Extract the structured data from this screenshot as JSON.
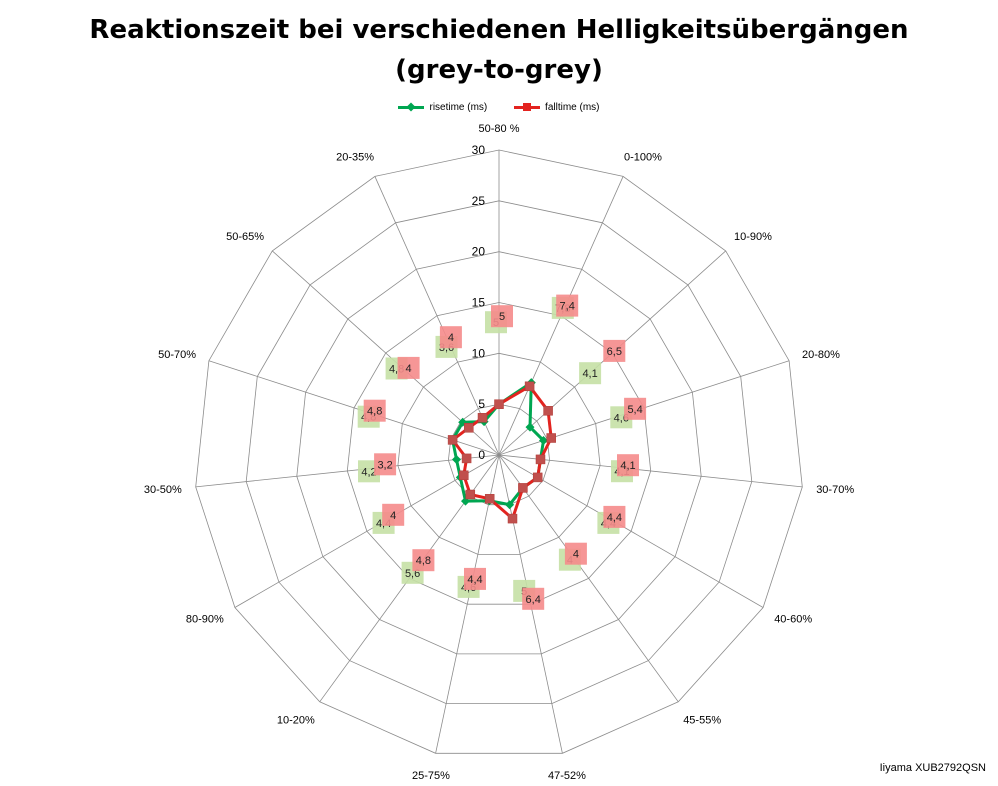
{
  "chart_data": {
    "type": "radar",
    "title": "Reaktionszeit bei verschiedenen Helligkeitsübergängen (grey-to-grey)",
    "title_lines": [
      "Reaktionszeit bei verschiedenen Helligkeitsübergängen",
      "(grey-to-grey)"
    ],
    "categories": [
      "50-80 %",
      "0-100%",
      "10-90%",
      "20-80%",
      "30-70%",
      "40-60%",
      "45-55%",
      "47-52%",
      "25-75%",
      "10-20%",
      "80-90%",
      "30-50%",
      "50-70%",
      "50-65%",
      "20-35%"
    ],
    "r_ticks": [
      "0",
      "5",
      "10",
      "15",
      "20",
      "25",
      "30"
    ],
    "rlim": [
      0,
      30
    ],
    "series": [
      {
        "name": "risetime (ms)",
        "color": "#00a651",
        "marker": "diamond",
        "label_bg": "#c5e0a5",
        "values": [
          5,
          7.8,
          4.1,
          4.6,
          4.1,
          4.4,
          4,
          5,
          4.6,
          5.6,
          4.4,
          4.2,
          4.8,
          4.8,
          3.6
        ],
        "labels": [
          "5",
          "7,8",
          "4,1",
          "4,6",
          "4,1",
          "4,4",
          "4",
          "5",
          "4,6",
          "5,6",
          "4,4",
          "4,2",
          "4,8",
          "4,8",
          "3,6"
        ]
      },
      {
        "name": "falltime (ms)",
        "color": "#e3231f",
        "marker": "square",
        "label_bg": "#f58b8b",
        "values": [
          5,
          7.4,
          6.5,
          5.4,
          4.1,
          4.4,
          4,
          6.4,
          4.4,
          4.8,
          4,
          3.2,
          4.8,
          4,
          4
        ],
        "labels": [
          "5",
          "7,4",
          "6,5",
          "5,4",
          "4,1",
          "4,4",
          "4",
          "6,4",
          "4,4",
          "4,8",
          "4",
          "3,2",
          "4,8",
          "4",
          "4"
        ]
      }
    ],
    "grid": true,
    "legend_position": "top"
  },
  "footer": {
    "model": "Iiyama XUB2792QSN"
  }
}
